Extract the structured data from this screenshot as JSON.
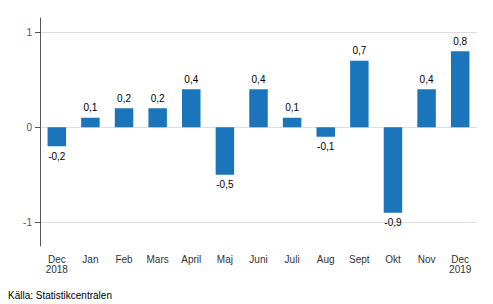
{
  "chart_data": {
    "type": "bar",
    "categories": [
      "Dec\n2018",
      "Jan",
      "Feb",
      "Mars",
      "April",
      "Maj",
      "Juni",
      "Juli",
      "Aug",
      "Sept",
      "Okt",
      "Nov",
      "Dec\n2019"
    ],
    "values": [
      -0.2,
      0.1,
      0.2,
      0.2,
      0.4,
      -0.5,
      0.4,
      0.1,
      -0.1,
      0.7,
      -0.9,
      0.4,
      0.8
    ],
    "value_labels": [
      "-0,2",
      "0,1",
      "0,2",
      "0,2",
      "0,4",
      "-0,5",
      "0,4",
      "0,1",
      "-0,1",
      "0,7",
      "-0,9",
      "0,4",
      "0,8"
    ],
    "data_labels": true,
    "color": "#1a75bb",
    "ylim": [
      -1.25,
      1.15
    ],
    "yticks": [
      -1,
      0,
      1
    ],
    "grid": true,
    "annotations": [
      "Källa: Statistikcentralen"
    ]
  }
}
